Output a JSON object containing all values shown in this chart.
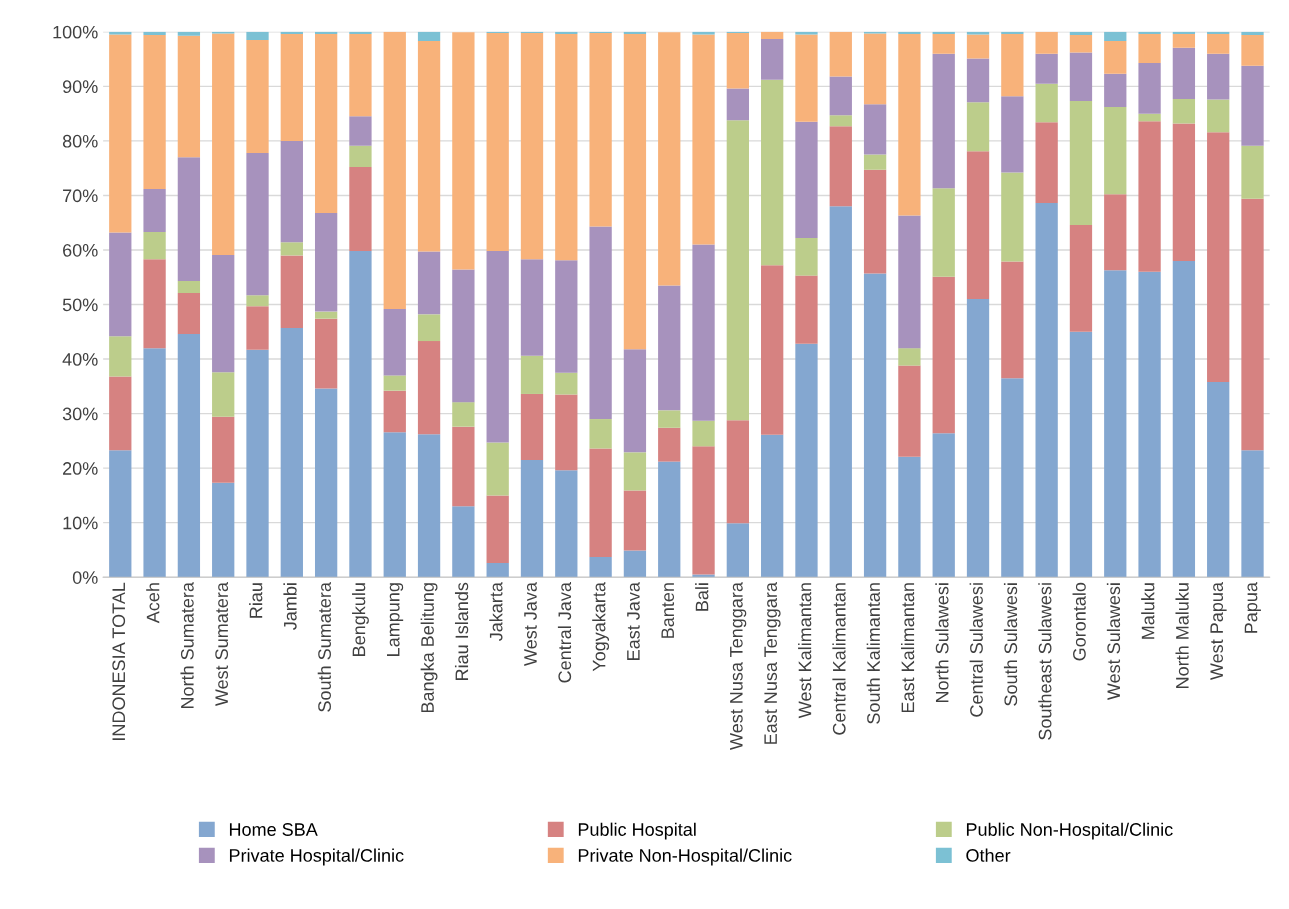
{
  "chart_data": {
    "type": "bar",
    "stacked": true,
    "categories": [
      "INDONESIA TOTAL",
      "Aceh",
      "North Sumatera",
      "West Sumatera",
      "Riau",
      "Jambi",
      "South Sumatera",
      "Bengkulu",
      "Lampung",
      "Bangka Belitung",
      "Riau Islands",
      "Jakarta",
      "West Java",
      "Central Java",
      "Yogyakarta",
      "East Java",
      "Banten",
      "Bali",
      "West Nusa Tenggara",
      "East Nusa Tenggara",
      "West Kalimantan",
      "Central Kalimantan",
      "South Kalimantan",
      "East Kalimantan",
      "North Sulawesi",
      "Central Sulawesi",
      "South Sulawesi",
      "Southeast Sulawesi",
      "Gorontalo",
      "West Sulawesi",
      "Maluku",
      "North Maluku",
      "West Papua",
      "Papua"
    ],
    "series": [
      {
        "name": "Home SBA",
        "color": "#84a7d0",
        "values": [
          23.3,
          42.0,
          44.6,
          17.3,
          41.7,
          45.7,
          34.6,
          59.8,
          26.6,
          26.2,
          13.0,
          2.6,
          21.5,
          19.6,
          3.7,
          4.9,
          21.2,
          0.5,
          9.9,
          26.1,
          42.8,
          68.0,
          55.7,
          22.1,
          26.4,
          51.0,
          36.5,
          68.6,
          45.0,
          56.3,
          56.0,
          58.0,
          35.8,
          23.3
        ]
      },
      {
        "name": "Public Hospital",
        "color": "#d68281",
        "values": [
          13.5,
          16.3,
          7.5,
          12.1,
          8.0,
          13.3,
          12.8,
          15.4,
          7.6,
          17.1,
          14.6,
          12.4,
          12.1,
          13.9,
          19.9,
          11.0,
          6.2,
          23.5,
          18.9,
          31.1,
          12.5,
          14.7,
          19.0,
          16.7,
          28.7,
          27.1,
          21.4,
          14.8,
          19.6,
          13.9,
          27.6,
          25.2,
          45.8,
          46.1
        ]
      },
      {
        "name": "Public Non-Hospital/Clinic",
        "color": "#bccd8b",
        "values": [
          7.4,
          5.0,
          2.2,
          8.2,
          2.0,
          2.4,
          1.3,
          3.9,
          2.8,
          4.9,
          4.5,
          9.7,
          7.0,
          4.0,
          5.4,
          7.0,
          3.2,
          4.7,
          55.0,
          34.0,
          6.9,
          2.0,
          2.8,
          3.2,
          16.2,
          9.0,
          16.3,
          7.1,
          22.7,
          16.0,
          1.4,
          4.5,
          6.0,
          9.7
        ]
      },
      {
        "name": "Private Hospital/Clinic",
        "color": "#a792bd",
        "values": [
          19.0,
          7.9,
          22.7,
          21.5,
          26.1,
          18.6,
          18.1,
          5.4,
          12.2,
          11.5,
          24.3,
          35.1,
          17.7,
          20.6,
          35.3,
          18.9,
          22.9,
          32.3,
          5.8,
          7.5,
          21.3,
          7.1,
          9.2,
          24.3,
          24.7,
          8.0,
          14.0,
          5.5,
          8.9,
          6.1,
          9.3,
          9.4,
          8.4,
          14.7
        ]
      },
      {
        "name": "Private Non-Hospital/Clinic",
        "color": "#f8b27a",
        "values": [
          36.3,
          28.2,
          22.3,
          40.6,
          20.7,
          19.6,
          32.8,
          15.1,
          50.8,
          38.6,
          43.5,
          40.0,
          41.5,
          41.5,
          35.5,
          57.8,
          46.4,
          38.5,
          10.2,
          1.3,
          16.0,
          8.2,
          13.0,
          33.3,
          3.6,
          4.4,
          11.4,
          4.0,
          3.2,
          6.0,
          5.3,
          2.5,
          3.6,
          5.6
        ]
      },
      {
        "name": "Other",
        "color": "#7cc1d4",
        "values": [
          0.5,
          0.6,
          0.7,
          0.3,
          1.5,
          0.4,
          0.4,
          0.4,
          0.0,
          1.7,
          null,
          0.2,
          0.2,
          0.4,
          0.2,
          0.4,
          null,
          0.5,
          0.2,
          0.0,
          0.5,
          0.0,
          0.3,
          0.4,
          0.4,
          0.5,
          0.4,
          0.0,
          0.6,
          1.7,
          0.4,
          0.4,
          0.4,
          0.6
        ]
      }
    ],
    "ylim": [
      0,
      100
    ],
    "yticks": [
      {
        "value": 0,
        "label": "0%"
      },
      {
        "value": 10,
        "label": "10%"
      },
      {
        "value": 20,
        "label": "20%"
      },
      {
        "value": 30,
        "label": "30%"
      },
      {
        "value": 40,
        "label": "40%"
      },
      {
        "value": 50,
        "label": "50%"
      },
      {
        "value": 60,
        "label": "60%"
      },
      {
        "value": 70,
        "label": "70%"
      },
      {
        "value": 80,
        "label": "80%"
      },
      {
        "value": 90,
        "label": "90%"
      },
      {
        "value": 100,
        "label": "100%"
      }
    ],
    "grid": "y",
    "legend": "bottom"
  }
}
